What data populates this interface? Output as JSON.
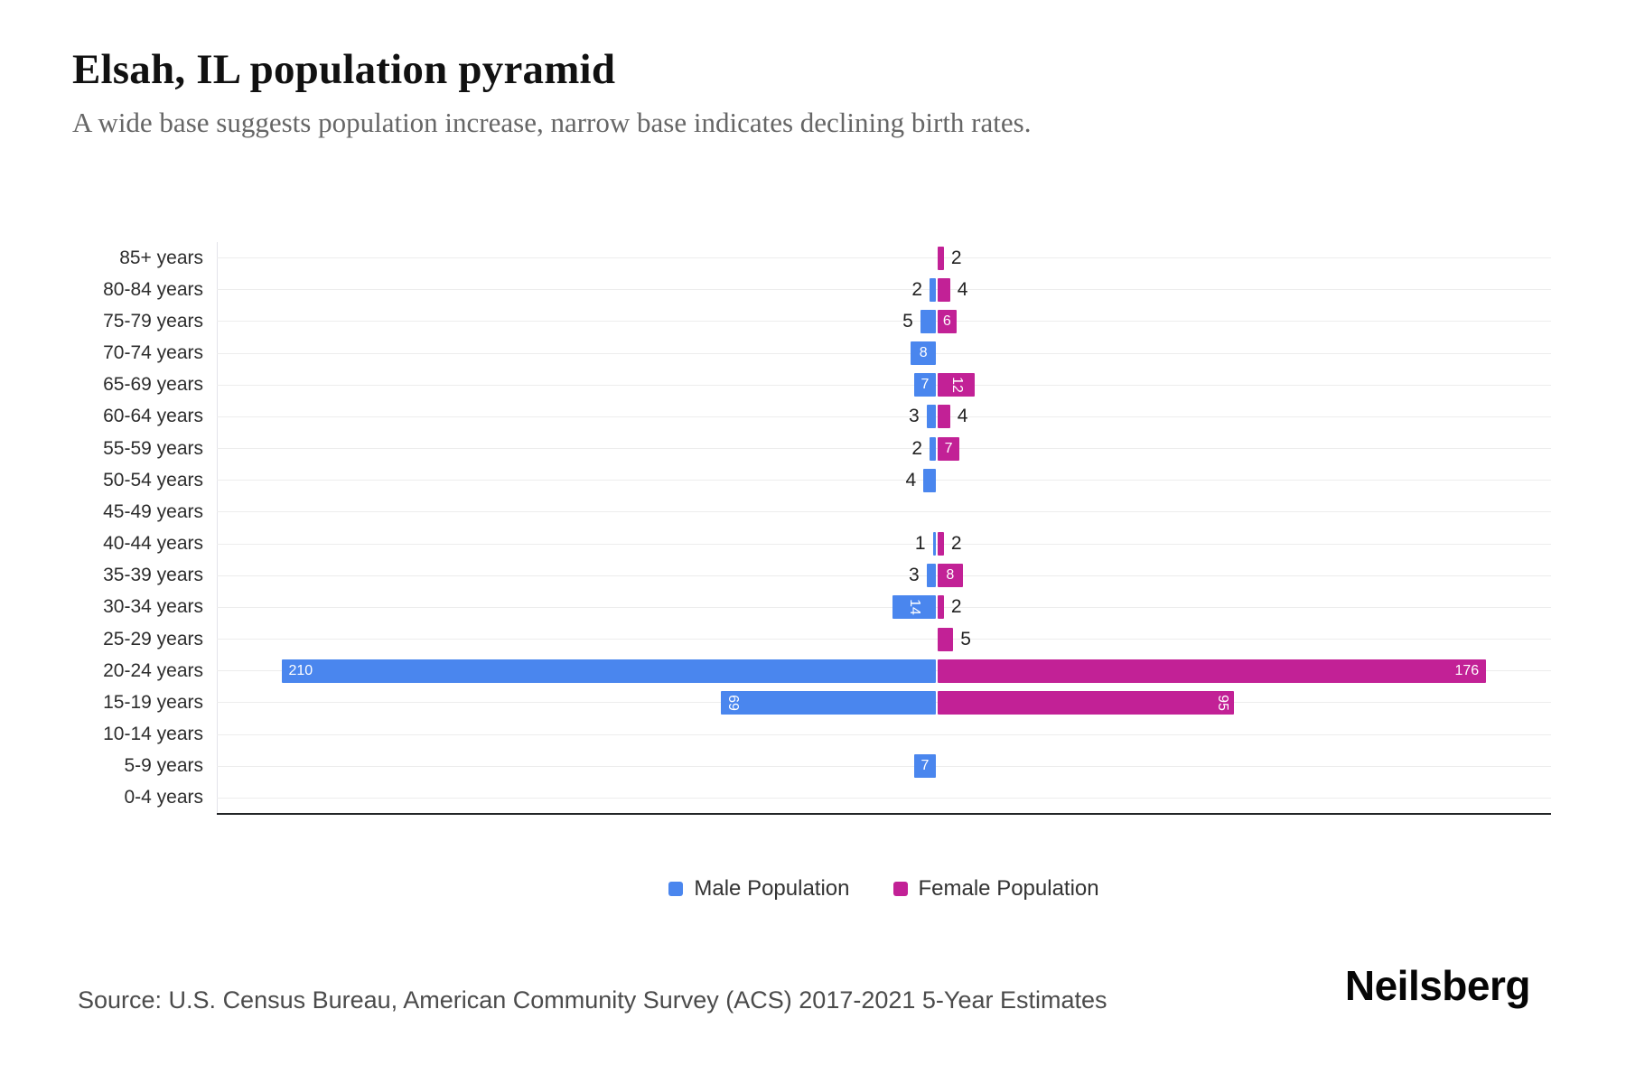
{
  "header": {
    "title": "Elsah, IL population pyramid",
    "subtitle": "A wide base suggests population increase, narrow base indicates declining birth rates."
  },
  "chart_data": {
    "type": "bar",
    "variant": "population_pyramid",
    "title": "Elsah, IL population pyramid",
    "xlabel": "",
    "ylabel": "",
    "grid": true,
    "legend_position": "bottom",
    "categories": [
      "85+ years",
      "80-84 years",
      "75-79 years",
      "70-74 years",
      "65-69 years",
      "60-64 years",
      "55-59 years",
      "50-54 years",
      "45-49 years",
      "40-44 years",
      "35-39 years",
      "30-34 years",
      "25-29 years",
      "20-24 years",
      "15-19 years",
      "10-14 years",
      "5-9 years",
      "0-4 years"
    ],
    "series": [
      {
        "name": "Male Population",
        "color": "#4a86ee",
        "direction": "left",
        "values": [
          null,
          2,
          5,
          8,
          7,
          3,
          2,
          4,
          null,
          1,
          3,
          14,
          null,
          210,
          69,
          null,
          7,
          null
        ],
        "label_styles": [
          null,
          "outside",
          "outside",
          "inside",
          "inside",
          "outside",
          "outside",
          "outside",
          null,
          "outside",
          "outside",
          "inside-rot",
          null,
          "inside-end",
          "inside-end-rot",
          null,
          "inside",
          null
        ]
      },
      {
        "name": "Female Population",
        "color": "#c22196",
        "direction": "right",
        "values": [
          2,
          4,
          6,
          null,
          12,
          4,
          7,
          null,
          null,
          2,
          8,
          2,
          5,
          176,
          95,
          null,
          null,
          null
        ],
        "label_styles": [
          "outside",
          "outside",
          "inside",
          null,
          "inside-rot",
          "outside",
          "inside",
          null,
          null,
          "outside",
          "inside",
          "outside",
          "outside",
          "inside-end",
          "inside-end-rot",
          null,
          null,
          null
        ]
      }
    ],
    "style": {
      "inside_label_color": "#ffffff",
      "outside_label_color": "#222222",
      "gridline_color": "#ededed",
      "axis_line_color": "#232527"
    }
  },
  "legend": {
    "items": [
      {
        "label": "Male Population",
        "color": "#4a86ee"
      },
      {
        "label": "Female Population",
        "color": "#c22196"
      }
    ]
  },
  "footer": {
    "source": "Source: U.S. Census Bureau, American Community Survey (ACS) 2017-2021 5-Year Estimates",
    "brand": "Neilsberg"
  }
}
